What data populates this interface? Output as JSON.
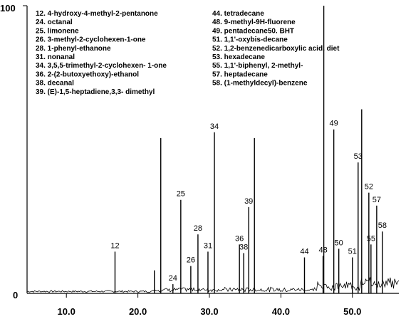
{
  "chart_data": {
    "type": "line",
    "xlim": [
      4.5,
      56.5
    ],
    "ylim": [
      0,
      100
    ],
    "y_ticks": [
      "100",
      "0"
    ],
    "x_ticks": [
      {
        "value": 10,
        "label": "10.0"
      },
      {
        "value": 20,
        "label": "20.0"
      },
      {
        "value": 30,
        "label": "30.0"
      },
      {
        "value": 40,
        "label": "40.0"
      },
      {
        "value": 50,
        "label": "50.0"
      }
    ],
    "legend_left": [
      "12. 4-hydroxy-4-methyl-2-pentanone",
      "24. octanal",
      "25. limonene",
      "26. 3-methyl-2-cyclohexen-1-one",
      "28. 1-phenyl-ethanone",
      "31. nonanal",
      "34. 3,5,5-trimethyl-2-cyclohexen-  1-one",
      "36. 2-(2-butoxyethoxy)-ethanol",
      "38. decanal",
      "39. (E)-1,5-heptadiene,3,3-   dimethyl"
    ],
    "legend_right": [
      "44. tetradecane",
      "48. 9-methyl-9H-fluorene",
      "49. pentadecane50. BHT",
      "51. 1,1'-oxybis-decane",
      "52. 1,2-benzenedicarboxylic   acid, diet",
      "53. hexadecane",
      "55. 1,1'-biphenyl, 2-methyl-",
      "57. heptadecane",
      "58. (1-methyldecyl)-benzene"
    ],
    "peaks": [
      {
        "label": "12",
        "x": 16.8,
        "y": 14.5
      },
      {
        "label": "",
        "x": 22.3,
        "y": 8.0
      },
      {
        "label": "",
        "x": 23.2,
        "y": 54.0
      },
      {
        "label": "24",
        "x": 24.9,
        "y": 3.2
      },
      {
        "label": "25",
        "x": 26.0,
        "y": 32.5
      },
      {
        "label": "26",
        "x": 27.4,
        "y": 9.5
      },
      {
        "label": "28",
        "x": 28.4,
        "y": 20.5
      },
      {
        "label": "31",
        "x": 29.8,
        "y": 14.5
      },
      {
        "label": "34",
        "x": 30.7,
        "y": 56.0
      },
      {
        "label": "36",
        "x": 34.2,
        "y": 17.0
      },
      {
        "label": "38",
        "x": 34.8,
        "y": 14.0
      },
      {
        "label": "39",
        "x": 35.5,
        "y": 30.0
      },
      {
        "label": "",
        "x": 36.3,
        "y": 54.0
      },
      {
        "label": "44",
        "x": 43.3,
        "y": 12.5
      },
      {
        "label": "48",
        "x": 45.9,
        "y": 13.0
      },
      {
        "label": "",
        "x": 46.0,
        "y": 100.0
      },
      {
        "label": "49",
        "x": 47.4,
        "y": 57.0
      },
      {
        "label": "50",
        "x": 48.1,
        "y": 15.5
      },
      {
        "label": "51",
        "x": 50.0,
        "y": 12.5
      },
      {
        "label": "53",
        "x": 50.8,
        "y": 45.5
      },
      {
        "label": "",
        "x": 51.3,
        "y": 64.0
      },
      {
        "label": "52",
        "x": 52.3,
        "y": 35.0
      },
      {
        "label": "55",
        "x": 52.6,
        "y": 17.0
      },
      {
        "label": "57",
        "x": 53.4,
        "y": 30.5
      },
      {
        "label": "58",
        "x": 54.2,
        "y": 21.5
      }
    ]
  }
}
